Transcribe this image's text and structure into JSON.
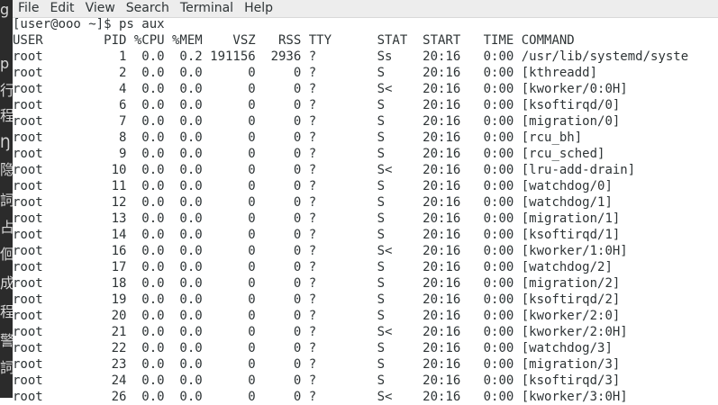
{
  "menu": [
    "File",
    "Edit",
    "View",
    "Search",
    "Terminal",
    "Help"
  ],
  "left_strip": [
    "g",
    "p",
    "行",
    "程",
    "Ŋ",
    "隐",
    "詞",
    "占",
    "佪",
    "成",
    "程",
    "警",
    "詞"
  ],
  "prompt": "[user@ooo ~]$ ps aux",
  "columns": [
    "USER",
    "PID",
    "%CPU",
    "%MEM",
    "VSZ",
    "RSS",
    "TTY",
    "STAT",
    "START",
    "TIME",
    "COMMAND"
  ],
  "processes": [
    {
      "user": "root",
      "pid": "1",
      "cpu": "0.0",
      "mem": "0.2",
      "vsz": "191156",
      "rss": "2936",
      "tty": "?",
      "stat": "Ss",
      "start": "20:16",
      "time": "0:00",
      "command": "/usr/lib/systemd/syste"
    },
    {
      "user": "root",
      "pid": "2",
      "cpu": "0.0",
      "mem": "0.0",
      "vsz": "0",
      "rss": "0",
      "tty": "?",
      "stat": "S",
      "start": "20:16",
      "time": "0:00",
      "command": "[kthreadd]"
    },
    {
      "user": "root",
      "pid": "4",
      "cpu": "0.0",
      "mem": "0.0",
      "vsz": "0",
      "rss": "0",
      "tty": "?",
      "stat": "S<",
      "start": "20:16",
      "time": "0:00",
      "command": "[kworker/0:0H]"
    },
    {
      "user": "root",
      "pid": "6",
      "cpu": "0.0",
      "mem": "0.0",
      "vsz": "0",
      "rss": "0",
      "tty": "?",
      "stat": "S",
      "start": "20:16",
      "time": "0:00",
      "command": "[ksoftirqd/0]"
    },
    {
      "user": "root",
      "pid": "7",
      "cpu": "0.0",
      "mem": "0.0",
      "vsz": "0",
      "rss": "0",
      "tty": "?",
      "stat": "S",
      "start": "20:16",
      "time": "0:00",
      "command": "[migration/0]"
    },
    {
      "user": "root",
      "pid": "8",
      "cpu": "0.0",
      "mem": "0.0",
      "vsz": "0",
      "rss": "0",
      "tty": "?",
      "stat": "S",
      "start": "20:16",
      "time": "0:00",
      "command": "[rcu_bh]"
    },
    {
      "user": "root",
      "pid": "9",
      "cpu": "0.0",
      "mem": "0.0",
      "vsz": "0",
      "rss": "0",
      "tty": "?",
      "stat": "S",
      "start": "20:16",
      "time": "0:00",
      "command": "[rcu_sched]"
    },
    {
      "user": "root",
      "pid": "10",
      "cpu": "0.0",
      "mem": "0.0",
      "vsz": "0",
      "rss": "0",
      "tty": "?",
      "stat": "S<",
      "start": "20:16",
      "time": "0:00",
      "command": "[lru-add-drain]"
    },
    {
      "user": "root",
      "pid": "11",
      "cpu": "0.0",
      "mem": "0.0",
      "vsz": "0",
      "rss": "0",
      "tty": "?",
      "stat": "S",
      "start": "20:16",
      "time": "0:00",
      "command": "[watchdog/0]"
    },
    {
      "user": "root",
      "pid": "12",
      "cpu": "0.0",
      "mem": "0.0",
      "vsz": "0",
      "rss": "0",
      "tty": "?",
      "stat": "S",
      "start": "20:16",
      "time": "0:00",
      "command": "[watchdog/1]"
    },
    {
      "user": "root",
      "pid": "13",
      "cpu": "0.0",
      "mem": "0.0",
      "vsz": "0",
      "rss": "0",
      "tty": "?",
      "stat": "S",
      "start": "20:16",
      "time": "0:00",
      "command": "[migration/1]"
    },
    {
      "user": "root",
      "pid": "14",
      "cpu": "0.0",
      "mem": "0.0",
      "vsz": "0",
      "rss": "0",
      "tty": "?",
      "stat": "S",
      "start": "20:16",
      "time": "0:00",
      "command": "[ksoftirqd/1]"
    },
    {
      "user": "root",
      "pid": "16",
      "cpu": "0.0",
      "mem": "0.0",
      "vsz": "0",
      "rss": "0",
      "tty": "?",
      "stat": "S<",
      "start": "20:16",
      "time": "0:00",
      "command": "[kworker/1:0H]"
    },
    {
      "user": "root",
      "pid": "17",
      "cpu": "0.0",
      "mem": "0.0",
      "vsz": "0",
      "rss": "0",
      "tty": "?",
      "stat": "S",
      "start": "20:16",
      "time": "0:00",
      "command": "[watchdog/2]"
    },
    {
      "user": "root",
      "pid": "18",
      "cpu": "0.0",
      "mem": "0.0",
      "vsz": "0",
      "rss": "0",
      "tty": "?",
      "stat": "S",
      "start": "20:16",
      "time": "0:00",
      "command": "[migration/2]"
    },
    {
      "user": "root",
      "pid": "19",
      "cpu": "0.0",
      "mem": "0.0",
      "vsz": "0",
      "rss": "0",
      "tty": "?",
      "stat": "S",
      "start": "20:16",
      "time": "0:00",
      "command": "[ksoftirqd/2]"
    },
    {
      "user": "root",
      "pid": "20",
      "cpu": "0.0",
      "mem": "0.0",
      "vsz": "0",
      "rss": "0",
      "tty": "?",
      "stat": "S",
      "start": "20:16",
      "time": "0:00",
      "command": "[kworker/2:0]"
    },
    {
      "user": "root",
      "pid": "21",
      "cpu": "0.0",
      "mem": "0.0",
      "vsz": "0",
      "rss": "0",
      "tty": "?",
      "stat": "S<",
      "start": "20:16",
      "time": "0:00",
      "command": "[kworker/2:0H]"
    },
    {
      "user": "root",
      "pid": "22",
      "cpu": "0.0",
      "mem": "0.0",
      "vsz": "0",
      "rss": "0",
      "tty": "?",
      "stat": "S",
      "start": "20:16",
      "time": "0:00",
      "command": "[watchdog/3]"
    },
    {
      "user": "root",
      "pid": "23",
      "cpu": "0.0",
      "mem": "0.0",
      "vsz": "0",
      "rss": "0",
      "tty": "?",
      "stat": "S",
      "start": "20:16",
      "time": "0:00",
      "command": "[migration/3]"
    },
    {
      "user": "root",
      "pid": "24",
      "cpu": "0.0",
      "mem": "0.0",
      "vsz": "0",
      "rss": "0",
      "tty": "?",
      "stat": "S",
      "start": "20:16",
      "time": "0:00",
      "command": "[ksoftirqd/3]"
    },
    {
      "user": "root",
      "pid": "26",
      "cpu": "0.0",
      "mem": "0.0",
      "vsz": "0",
      "rss": "0",
      "tty": "?",
      "stat": "S<",
      "start": "20:16",
      "time": "0:00",
      "command": "[kworker/3:0H]"
    }
  ]
}
